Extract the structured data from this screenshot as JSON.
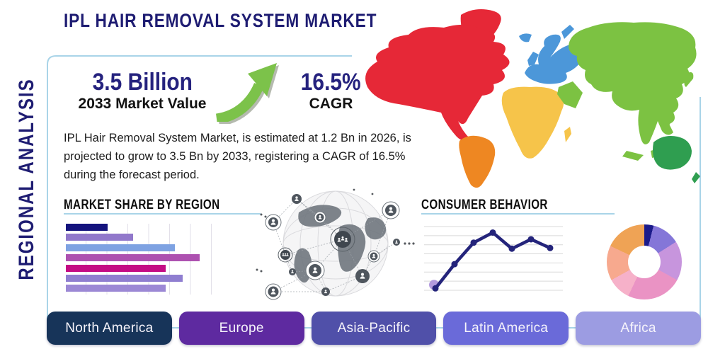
{
  "title": "IPL HAIR REMOVAL SYSTEM MARKET",
  "side_label": "REGIONAL ANALYSIS",
  "stats": {
    "market_value": "3.5 Billion",
    "market_value_caption": "2033 Market Value",
    "cagr_value": "16.5%",
    "cagr_caption": "CAGR",
    "arrow_color": "#7cc24a"
  },
  "description": "IPL Hair Removal System Market, is estimated at 1.2 Bn in 2026, is projected to grow to 3.5 Bn by 2033, registering a CAGR of 16.5% during the forecast period.",
  "colors": {
    "heading_navy": "#1e1c72",
    "text_black": "#141414",
    "panel_border": "#a9d4e8"
  },
  "sections": {
    "market_share_heading": "MARKET SHARE BY REGION",
    "consumer_behavior_heading": "CONSUMER BEHAVIOR"
  },
  "chart_data": [
    {
      "name": "market_share_by_region",
      "type": "bar",
      "orientation": "horizontal",
      "title": "MARKET SHARE BY REGION",
      "categories": [
        "",
        "",
        "",
        "",
        "",
        "",
        ""
      ],
      "values": [
        27,
        44,
        71,
        87,
        65,
        76,
        65
      ],
      "xlim": [
        0,
        100
      ],
      "grid": true,
      "bar_colors": [
        "#14137d",
        "#9178cb",
        "#7ea2e2",
        "#ad51b0",
        "#c40b84",
        "#8f7ed0",
        "#9c88d5"
      ]
    },
    {
      "name": "consumer_behavior_trend",
      "type": "line",
      "title": "CONSUMER BEHAVIOR",
      "x": [
        1,
        2,
        3,
        4,
        5,
        6,
        7
      ],
      "values": [
        6,
        42,
        74,
        89,
        65,
        79,
        66
      ],
      "ylim": [
        0,
        100
      ],
      "grid": true,
      "line_color": "#24247b",
      "point_color": "#24247b",
      "first_point_halo_color": "#b29add",
      "gridline_count": 8
    },
    {
      "name": "regional_share_donut",
      "type": "pie",
      "donut": true,
      "values": [
        4,
        12,
        17,
        24,
        10,
        15,
        18
      ],
      "slice_colors": [
        "#1b1b8a",
        "#8476d8",
        "#c795dd",
        "#ea93c4",
        "#f6b1c9",
        "#f7a98e",
        "#efa355"
      ],
      "legend": "none"
    }
  ],
  "regions": [
    {
      "label": "North America",
      "color": "#173459"
    },
    {
      "label": "Europe",
      "color": "#5e2aa0"
    },
    {
      "label": "Asia-Pacific",
      "color": "#5050a9"
    },
    {
      "label": "Latin America",
      "color": "#6a6ad9"
    },
    {
      "label": "Africa",
      "color": "#9c9ce2"
    }
  ],
  "map": {
    "colors": {
      "north_america": "#e62837",
      "greenland": "#e62837",
      "south_america": "#ee8722",
      "europe": "#4c97d9",
      "iceland": "#4c97d9",
      "uk": "#4c97d9",
      "russia_sliver": "#4c97d9",
      "africa": "#f6c44a",
      "madagascar": "#f6c44a",
      "arabia": "#7cc242",
      "asia": "#7cc242",
      "japan": "#7cc242",
      "se_asia": "#7cc242",
      "australia": "#2f9e50",
      "new_zealand": "#2f9e50"
    }
  }
}
